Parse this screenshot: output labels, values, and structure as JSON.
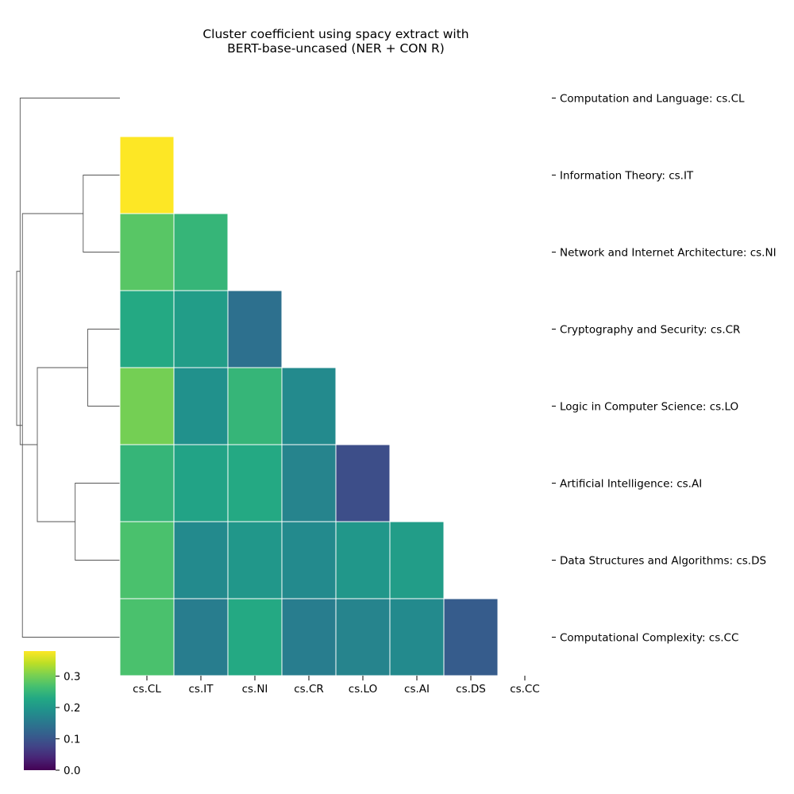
{
  "chart_data": {
    "type": "heatmap",
    "title_lines": [
      "Cluster coefficient using spacy extract with",
      "BERT-base-uncased (NER + CON R)"
    ],
    "x_labels": [
      "cs.CL",
      "cs.IT",
      "cs.NI",
      "cs.CR",
      "cs.LO",
      "cs.AI",
      "cs.DS",
      "cs.CC"
    ],
    "y_labels": [
      "Computation and Language: cs.CL",
      "Information Theory: cs.IT",
      "Network and Internet Architecture: cs.NI",
      "Cryptography and Security: cs.CR",
      "Logic in Computer Science: cs.LO",
      "Artificial Intelligence: cs.AI",
      "Data Structures and Algorithms: cs.DS",
      "Computational Complexity: cs.CC"
    ],
    "matrix": [
      [
        null,
        null,
        null,
        null,
        null,
        null,
        null,
        null
      ],
      [
        0.38,
        null,
        null,
        null,
        null,
        null,
        null,
        null
      ],
      [
        0.28,
        0.25,
        null,
        null,
        null,
        null,
        null,
        null
      ],
      [
        0.23,
        0.21,
        0.14,
        null,
        null,
        null,
        null,
        null
      ],
      [
        0.3,
        0.19,
        0.25,
        0.18,
        null,
        null,
        null,
        null
      ],
      [
        0.25,
        0.22,
        0.23,
        0.17,
        0.09,
        null,
        null,
        null
      ],
      [
        0.27,
        0.18,
        0.2,
        0.18,
        0.2,
        0.21,
        null,
        null
      ],
      [
        0.27,
        0.16,
        0.23,
        0.16,
        0.17,
        0.18,
        0.11,
        null
      ]
    ],
    "color_scale": "viridis",
    "vmin": 0.0,
    "vmax": 0.38,
    "colorbar_ticks": [
      "0.0",
      "0.1",
      "0.2",
      "0.3"
    ],
    "colorbar_tick_values": [
      0.0,
      0.1,
      0.2,
      0.3
    ],
    "dendrogram": {
      "merges": [
        [
          5,
          6,
          0.39
        ],
        [
          3,
          4,
          0.28
        ],
        [
          1,
          2,
          0.32
        ],
        [
          8,
          9,
          0.72
        ],
        [
          7,
          10,
          0.85
        ],
        [
          0,
          11,
          0.87
        ],
        [
          12,
          13,
          0.9
        ]
      ]
    },
    "grid": false
  }
}
